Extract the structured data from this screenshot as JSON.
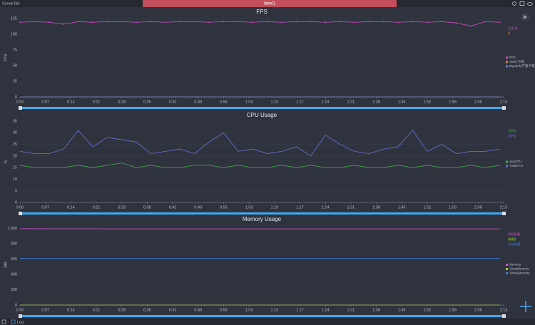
{
  "ui": {
    "tab_left": "SceneTab",
    "tab": "label1",
    "log": "Log"
  },
  "chart_data": [
    {
      "type": "line",
      "title": "FPS",
      "y_label": "FPS",
      "x": [
        0,
        4,
        8,
        12,
        16,
        20,
        24,
        28,
        32,
        36,
        40,
        44,
        48,
        52,
        56,
        60,
        64,
        68,
        72,
        76,
        80,
        84,
        88,
        92,
        96,
        100,
        104,
        108,
        112,
        116,
        120,
        124,
        128,
        132
      ],
      "xlim": [
        0,
        133
      ],
      "xticks": [
        {
          "value": 0,
          "label": "0:00"
        },
        {
          "value": 7,
          "label": "0:07"
        },
        {
          "value": 14,
          "label": "0:14"
        },
        {
          "value": 21,
          "label": "0:21"
        },
        {
          "value": 28,
          "label": "0:28"
        },
        {
          "value": 35,
          "label": "0:35"
        },
        {
          "value": 42,
          "label": "0:42"
        },
        {
          "value": 49,
          "label": "0:49"
        },
        {
          "value": 56,
          "label": "0:56"
        },
        {
          "value": 63,
          "label": "1:03"
        },
        {
          "value": 70,
          "label": "1:10"
        },
        {
          "value": 77,
          "label": "1:17"
        },
        {
          "value": 84,
          "label": "1:24"
        },
        {
          "value": 91,
          "label": "1:31"
        },
        {
          "value": 98,
          "label": "1:38"
        },
        {
          "value": 105,
          "label": "1:45"
        },
        {
          "value": 112,
          "label": "1:52"
        },
        {
          "value": 119,
          "label": "1:59"
        },
        {
          "value": 126,
          "label": "2:06"
        },
        {
          "value": 133,
          "label": "2:13"
        }
      ],
      "ylim": [
        0,
        125
      ],
      "yticks": [
        0,
        25,
        50,
        75,
        100,
        125
      ],
      "series": [
        {
          "name": "FPS",
          "color": "#d04fc8",
          "values": [
            119,
            120,
            119,
            116,
            120,
            119,
            120,
            120,
            119,
            120,
            119,
            120,
            120,
            119,
            120,
            120,
            119,
            120,
            119,
            120,
            120,
            119,
            120,
            119,
            120,
            120,
            119,
            120,
            119,
            120,
            118,
            113,
            120,
            119
          ]
        },
        {
          "name": "Jank(卡顿)",
          "color": "#e0803a",
          "values": [
            0,
            0,
            0,
            0,
            0,
            0,
            0,
            0,
            0,
            0,
            0,
            0,
            0,
            0,
            0,
            0,
            0,
            0,
            0,
            0,
            0,
            0,
            0,
            0,
            0,
            0,
            0,
            0,
            0,
            0,
            0,
            0,
            0,
            0
          ]
        },
        {
          "name": "BigJank(严重卡顿)",
          "color": "#5b7fe0",
          "values": [
            0,
            0,
            0,
            0,
            0,
            0,
            0,
            0,
            0,
            0,
            0,
            0,
            0,
            0,
            0,
            0,
            0,
            0,
            0,
            0,
            0,
            0,
            0,
            0,
            0,
            0,
            0,
            0,
            0,
            0,
            0,
            0,
            0,
            0
          ]
        }
      ],
      "side_labels": [
        {
          "text": "119.9",
          "color": "#d04fc8"
        },
        {
          "text": "0",
          "color": "#e0803a"
        }
      ]
    },
    {
      "type": "line",
      "title": "CPU Usage",
      "y_label": "%",
      "x": [
        0,
        4,
        8,
        12,
        16,
        20,
        24,
        28,
        32,
        36,
        40,
        44,
        48,
        52,
        56,
        60,
        64,
        68,
        72,
        76,
        80,
        84,
        88,
        92,
        96,
        100,
        104,
        108,
        112,
        116,
        120,
        124,
        128,
        132
      ],
      "xlim": [
        0,
        133
      ],
      "xticks": [
        {
          "value": 0,
          "label": "0:00"
        },
        {
          "value": 7,
          "label": "0:07"
        },
        {
          "value": 14,
          "label": "0:14"
        },
        {
          "value": 21,
          "label": "0:21"
        },
        {
          "value": 28,
          "label": "0:28"
        },
        {
          "value": 35,
          "label": "0:35"
        },
        {
          "value": 42,
          "label": "0:42"
        },
        {
          "value": 49,
          "label": "0:49"
        },
        {
          "value": 56,
          "label": "0:56"
        },
        {
          "value": 63,
          "label": "1:03"
        },
        {
          "value": 70,
          "label": "1:10"
        },
        {
          "value": 77,
          "label": "1:17"
        },
        {
          "value": 84,
          "label": "1:24"
        },
        {
          "value": 91,
          "label": "1:31"
        },
        {
          "value": 98,
          "label": "1:38"
        },
        {
          "value": 105,
          "label": "1:45"
        },
        {
          "value": 112,
          "label": "1:52"
        },
        {
          "value": 119,
          "label": "1:59"
        },
        {
          "value": 126,
          "label": "2:06"
        },
        {
          "value": 133,
          "label": "2:13"
        }
      ],
      "ylim": [
        0,
        35
      ],
      "yticks": [
        0,
        5,
        10,
        15,
        20,
        25,
        30,
        35
      ],
      "series": [
        {
          "name": "AppCPU",
          "color": "#4caf50",
          "values": [
            16,
            15,
            15,
            15,
            16,
            15,
            16,
            17,
            15,
            16,
            15,
            15,
            16,
            16,
            15,
            16,
            15,
            15,
            16,
            15,
            16,
            15,
            15,
            16,
            15,
            15,
            16,
            15,
            16,
            15,
            15,
            16,
            15,
            16
          ]
        },
        {
          "name": "TotalCPU",
          "color": "#6f72d8",
          "values": [
            22,
            21,
            21,
            23,
            31,
            24,
            28,
            27,
            26,
            21,
            22,
            23,
            21,
            26,
            30,
            22,
            23,
            21,
            22,
            24,
            20,
            29,
            25,
            22,
            21,
            23,
            24,
            31,
            22,
            25,
            21,
            22,
            22,
            23
          ]
        }
      ],
      "side_labels": [
        {
          "text": "15%",
          "color": "#4caf50"
        },
        {
          "text": "23%",
          "color": "#6f72d8"
        }
      ]
    },
    {
      "type": "line",
      "title": "Memory Usage",
      "y_label": "MB",
      "x": [
        0,
        4,
        8,
        12,
        16,
        20,
        24,
        28,
        32,
        36,
        40,
        44,
        48,
        52,
        56,
        60,
        64,
        68,
        72,
        76,
        80,
        84,
        88,
        92,
        96,
        100,
        104,
        108,
        112,
        116,
        120,
        124,
        128,
        132
      ],
      "xlim": [
        0,
        133
      ],
      "xticks": [
        {
          "value": 0,
          "label": "0:00"
        },
        {
          "value": 7,
          "label": "0:07"
        },
        {
          "value": 14,
          "label": "0:14"
        },
        {
          "value": 21,
          "label": "0:21"
        },
        {
          "value": 28,
          "label": "0:28"
        },
        {
          "value": 35,
          "label": "0:35"
        },
        {
          "value": 42,
          "label": "0:42"
        },
        {
          "value": 49,
          "label": "0:49"
        },
        {
          "value": 56,
          "label": "0:56"
        },
        {
          "value": 63,
          "label": "1:03"
        },
        {
          "value": 70,
          "label": "1:10"
        },
        {
          "value": 77,
          "label": "1:17"
        },
        {
          "value": 84,
          "label": "1:24"
        },
        {
          "value": 91,
          "label": "1:31"
        },
        {
          "value": 98,
          "label": "1:38"
        },
        {
          "value": 105,
          "label": "1:45"
        },
        {
          "value": 112,
          "label": "1:52"
        },
        {
          "value": 119,
          "label": "1:59"
        },
        {
          "value": 126,
          "label": "2:06"
        },
        {
          "value": 133,
          "label": "2:13"
        }
      ],
      "ylim": [
        0,
        1050
      ],
      "yticks": [
        0,
        200,
        400,
        600,
        800,
        {
          "value": 1000,
          "label": "1,000"
        }
      ],
      "series": [
        {
          "name": "Memory",
          "color": "#d04fc8",
          "values": [
            995,
            995,
            994,
            994,
            994,
            994,
            993,
            993,
            993,
            993,
            993,
            993,
            993,
            993,
            993,
            993,
            993,
            993,
            993,
            993,
            993,
            993,
            993,
            993,
            993,
            993,
            993,
            993,
            993,
            993,
            993,
            993,
            993,
            993
          ]
        },
        {
          "name": "SwapMemory",
          "color": "#9acd32",
          "values": [
            0,
            0,
            0,
            0,
            0,
            0,
            0,
            0,
            0,
            0,
            0,
            0,
            0,
            0,
            0,
            0,
            0,
            0,
            0,
            0,
            0,
            0,
            0,
            0,
            0,
            0,
            0,
            0,
            0,
            0,
            0,
            0,
            0,
            0
          ]
        },
        {
          "name": "VirtualMemory",
          "color": "#3f7fd8",
          "values": [
            610,
            610,
            610,
            610,
            610,
            610,
            610,
            610,
            610,
            610,
            610,
            610,
            610,
            610,
            610,
            610,
            610,
            610,
            610,
            610,
            610,
            610,
            610,
            610,
            610,
            610,
            610,
            610,
            610,
            610,
            610,
            610,
            610,
            610
          ]
        }
      ],
      "side_labels": [
        {
          "text": "993MB",
          "color": "#d04fc8"
        },
        {
          "text": "0MB",
          "color": "#9acd32"
        },
        {
          "text": "610MB",
          "color": "#3f7fd8"
        }
      ]
    }
  ]
}
